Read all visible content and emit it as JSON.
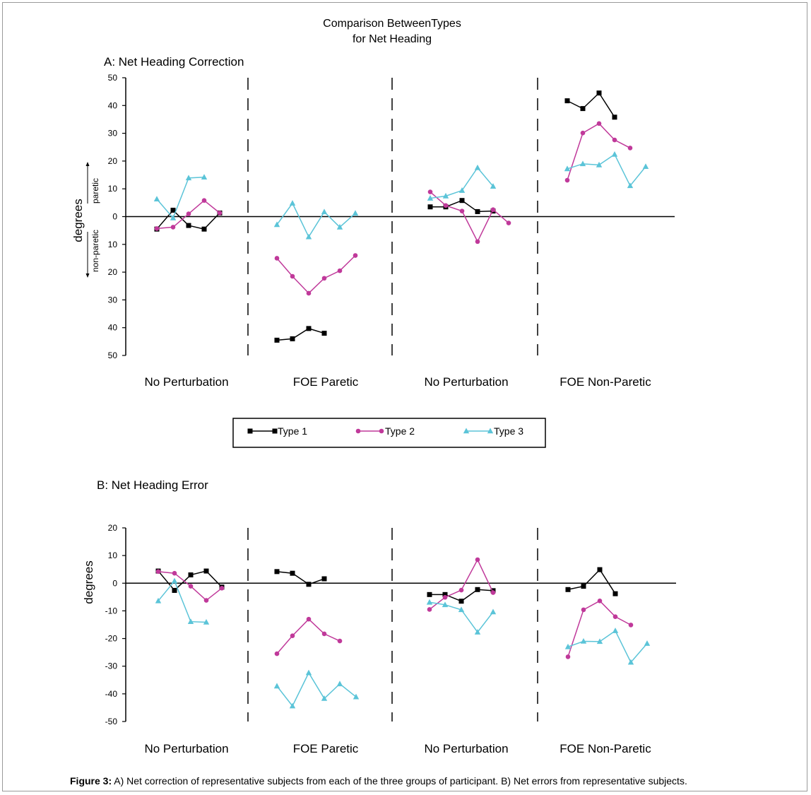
{
  "figure": {
    "title_line1": "Comparison BetweenTypes",
    "title_line2": "for Net Heading",
    "caption_label": "Figure 3:",
    "caption_text": " A) Net correction of representative subjects from each of the three groups of participant. B) Net errors from representative subjects."
  },
  "legend": {
    "items": [
      {
        "label": "Type 1",
        "color": "#000000",
        "marker": "square"
      },
      {
        "label": "Type 2",
        "color": "#c0399a",
        "marker": "circle"
      },
      {
        "label": "Type 3",
        "color": "#5bc4d8",
        "marker": "triangle"
      }
    ]
  },
  "chart_data": [
    {
      "type": "line",
      "title": "A: Net Heading Correction",
      "ylabel": "degrees",
      "direction_labels": {
        "up": "paretic",
        "down": "non-paretic"
      },
      "ylim": [
        -50,
        50
      ],
      "yticks": [
        {
          "value": 50,
          "label": "50"
        },
        {
          "value": 40,
          "label": "40"
        },
        {
          "value": 30,
          "label": "30"
        },
        {
          "value": 20,
          "label": "20"
        },
        {
          "value": 10,
          "label": "10"
        },
        {
          "value": 0,
          "label": "0"
        },
        {
          "value": -10,
          "label": "10"
        },
        {
          "value": -20,
          "label": "20"
        },
        {
          "value": -30,
          "label": "30"
        },
        {
          "value": -40,
          "label": "40"
        },
        {
          "value": -50,
          "label": "50"
        }
      ],
      "groups": [
        "No Perturbation",
        "FOE Paretic",
        "No Perturbation",
        "FOE Non-Paretic"
      ],
      "series": [
        {
          "name": "Type 1",
          "values": [
            [
              -4.5,
              2.3,
              -3.2,
              -4.5,
              1.3
            ],
            [
              -44.5,
              -44,
              -40.3,
              -42
            ],
            [
              3.5,
              3.5,
              5.8,
              1.8,
              2
            ],
            [
              41.7,
              38.9,
              44.5,
              35.8
            ]
          ]
        },
        {
          "name": "Type 2",
          "values": [
            [
              -4.3,
              -3.8,
              1,
              5.8,
              1.3
            ],
            [
              -15,
              -21.5,
              -27.6,
              -22.2,
              -19.5,
              -14
            ],
            [
              8.9,
              4,
              2,
              -9,
              2.5,
              -2.3
            ],
            [
              13.1,
              30.1,
              33.5,
              27.6,
              24.7
            ]
          ]
        },
        {
          "name": "Type 3",
          "values": [
            [
              6.3,
              -0.5,
              13.9,
              14.2
            ],
            [
              -2.9,
              4.8,
              -7.3,
              1.7,
              -3.8,
              1.2
            ],
            [
              6.6,
              7.4,
              9.4,
              17.6,
              10.9
            ],
            [
              17.2,
              19,
              18.6,
              22.4,
              11.1,
              18
            ]
          ]
        }
      ]
    },
    {
      "type": "line",
      "title": "B: Net Heading Error",
      "ylabel": "degrees",
      "ylim": [
        -50,
        20
      ],
      "yticks": [
        {
          "value": 20,
          "label": "20"
        },
        {
          "value": 10,
          "label": "10"
        },
        {
          "value": 0,
          "label": "0"
        },
        {
          "value": -10,
          "label": "-10"
        },
        {
          "value": -20,
          "label": "-20"
        },
        {
          "value": -30,
          "label": "-30"
        },
        {
          "value": -40,
          "label": "-40"
        },
        {
          "value": -50,
          "label": "-50"
        }
      ],
      "groups": [
        "No Perturbation",
        "FOE Paretic",
        "No Perturbation",
        "FOE Non-Paretic"
      ],
      "series": [
        {
          "name": "Type 1",
          "values": [
            [
              4.4,
              -2.6,
              3,
              4.4,
              -1.4
            ],
            [
              4.2,
              3.6,
              -0.4,
              1.6
            ],
            [
              -4.1,
              -4.1,
              -6.5,
              -2.3,
              -2.7
            ],
            [
              -2.3,
              -1.1,
              4.9,
              -3.8
            ]
          ]
        },
        {
          "name": "Type 2",
          "values": [
            [
              4.2,
              3.6,
              -1.1,
              -6.2,
              -1.8
            ],
            [
              -25.5,
              -19,
              -13,
              -18.3,
              -20.9
            ],
            [
              -9.5,
              -5.1,
              -2.5,
              8.5,
              -3.4
            ],
            [
              -26.6,
              -9.6,
              -6.4,
              -12.1,
              -15.1
            ]
          ]
        },
        {
          "name": "Type 3",
          "values": [
            [
              -6.4,
              0.8,
              -13.9,
              -14.1
            ],
            [
              -37.2,
              -44.4,
              -32.4,
              -41.7,
              -36.4,
              -41.1
            ],
            [
              -6.9,
              -7.8,
              -9.6,
              -17.7,
              -10.4
            ],
            [
              -23,
              -21,
              -21.1,
              -17.2,
              -28.6,
              -21.8
            ]
          ]
        }
      ]
    }
  ]
}
